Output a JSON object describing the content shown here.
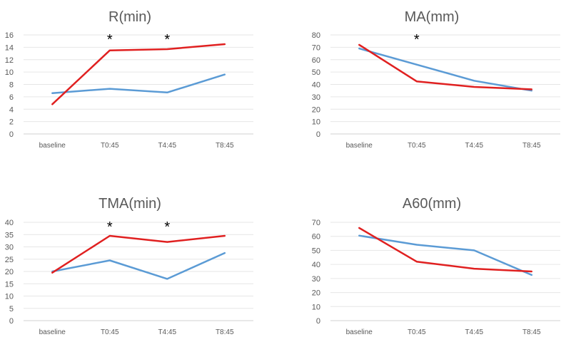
{
  "chart_data": [
    {
      "type": "line",
      "title": "R(min)",
      "categories": [
        "baseline",
        "T0:45",
        "T4:45",
        "T8:45"
      ],
      "ylim": [
        0,
        16
      ],
      "yticks": [
        0,
        2,
        4,
        6,
        8,
        10,
        12,
        14,
        16
      ],
      "grid": true,
      "series": [
        {
          "color": "#5b9bd5",
          "values": [
            6.6,
            7.3,
            6.7,
            9.6
          ]
        },
        {
          "color": "#e02020",
          "values": [
            4.8,
            13.5,
            13.7,
            14.5
          ]
        }
      ],
      "annotations": [
        {
          "text": "*",
          "category": "T0:45"
        },
        {
          "text": "*",
          "category": "T4:45"
        }
      ]
    },
    {
      "type": "line",
      "title": "MA(mm)",
      "categories": [
        "baseline",
        "T0:45",
        "T4:45",
        "T8:45"
      ],
      "ylim": [
        0,
        80
      ],
      "yticks": [
        0,
        10,
        20,
        30,
        40,
        50,
        60,
        70,
        80
      ],
      "grid": true,
      "series": [
        {
          "color": "#5b9bd5",
          "values": [
            69,
            56,
            43,
            35
          ]
        },
        {
          "color": "#e02020",
          "values": [
            72,
            42.5,
            38,
            36
          ]
        }
      ],
      "annotations": [
        {
          "text": "*",
          "category": "T0:45"
        }
      ]
    },
    {
      "type": "line",
      "title": "TMA(min)",
      "categories": [
        "baseline",
        "T0:45",
        "T4:45",
        "T8:45"
      ],
      "ylim": [
        0,
        40
      ],
      "yticks": [
        0,
        5,
        10,
        15,
        20,
        25,
        30,
        35,
        40
      ],
      "grid": true,
      "series": [
        {
          "color": "#5b9bd5",
          "values": [
            20,
            24.5,
            17,
            27.5
          ]
        },
        {
          "color": "#e02020",
          "values": [
            19.5,
            34.5,
            32,
            34.5
          ]
        }
      ],
      "annotations": [
        {
          "text": "*",
          "category": "T0:45"
        },
        {
          "text": "*",
          "category": "T4:45"
        }
      ]
    },
    {
      "type": "line",
      "title": "A60(mm)",
      "categories": [
        "baseline",
        "T0:45",
        "T4:45",
        "T8:45"
      ],
      "ylim": [
        0,
        70
      ],
      "yticks": [
        0,
        10,
        20,
        30,
        40,
        50,
        60,
        70
      ],
      "grid": true,
      "series": [
        {
          "color": "#5b9bd5",
          "values": [
            60.5,
            54,
            50,
            32.5
          ]
        },
        {
          "color": "#e02020",
          "values": [
            66,
            42,
            37,
            35
          ]
        }
      ],
      "annotations": []
    }
  ]
}
